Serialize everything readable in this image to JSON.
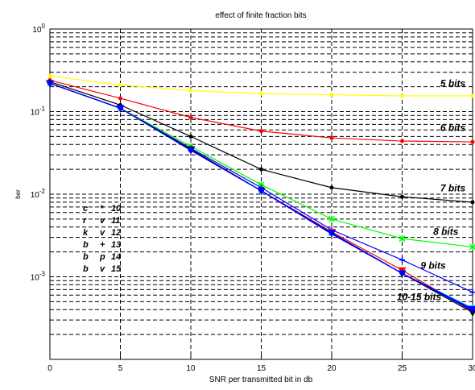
{
  "chart_data": {
    "type": "line",
    "title": "effect of finite fraction bits",
    "xlabel": "SNR per transmitted bit in db",
    "ylabel": "ber",
    "xlim": [
      0,
      30
    ],
    "ylim": [
      0.0001,
      1
    ],
    "yscale": "log",
    "grid": true,
    "x_ticks": [
      "0",
      "5",
      "10",
      "15",
      "20",
      "25",
      "30"
    ],
    "y_ticks": [
      {
        "base": "10",
        "exp": "0",
        "value": 1
      },
      {
        "base": "10",
        "exp": "-1",
        "value": 0.1
      },
      {
        "base": "10",
        "exp": "-2",
        "value": 0.01
      },
      {
        "base": "10",
        "exp": "-3",
        "value": 0.001
      }
    ],
    "x": [
      0,
      5,
      10,
      15,
      20,
      25,
      30
    ],
    "series": [
      {
        "name": "5 bits",
        "color": "#ffff00",
        "marker": "dot",
        "values": [
          0.27,
          0.21,
          0.18,
          0.165,
          0.16,
          0.155,
          0.155
        ]
      },
      {
        "name": "6 bits",
        "color": "#ff0000",
        "marker": "dot",
        "values": [
          0.24,
          0.145,
          0.085,
          0.058,
          0.048,
          0.044,
          0.043
        ]
      },
      {
        "name": "7 bits",
        "color": "#000000",
        "marker": "dot",
        "values": [
          0.23,
          0.12,
          0.05,
          0.02,
          0.012,
          0.0093,
          0.008
        ]
      },
      {
        "name": "8 bits",
        "color": "#00ff00",
        "marker": "star",
        "values": [
          0.22,
          0.11,
          0.038,
          0.013,
          0.005,
          0.0029,
          0.0023
        ]
      },
      {
        "name": "9 bits",
        "color": "#0000ff",
        "marker": "plus",
        "values": [
          0.22,
          0.11,
          0.036,
          0.012,
          0.0037,
          0.0016,
          0.00065
        ]
      },
      {
        "name": "10",
        "color": "#00ffff",
        "marker": "star",
        "values": [
          0.22,
          0.11,
          0.035,
          0.011,
          0.0034,
          0.0011,
          0.00042
        ]
      },
      {
        "name": "11",
        "color": "#ff0000",
        "marker": "tri",
        "values": [
          0.22,
          0.11,
          0.035,
          0.011,
          0.0035,
          0.0012,
          0.00038
        ]
      },
      {
        "name": "12",
        "color": "#000000",
        "marker": "tri",
        "values": [
          0.22,
          0.11,
          0.035,
          0.011,
          0.0034,
          0.0011,
          0.00037
        ]
      },
      {
        "name": "13",
        "color": "#0000ff",
        "marker": "plus",
        "values": [
          0.22,
          0.11,
          0.034,
          0.011,
          0.0033,
          0.0011,
          0.00039
        ]
      },
      {
        "name": "14",
        "color": "#0000ff",
        "marker": "dot",
        "values": [
          0.22,
          0.11,
          0.034,
          0.011,
          0.0033,
          0.0011,
          0.0004
        ]
      },
      {
        "name": "15",
        "color": "#0000ff",
        "marker": "tri",
        "values": [
          0.22,
          0.11,
          0.034,
          0.011,
          0.0034,
          0.0011,
          0.00041
        ]
      }
    ],
    "annotations": [
      {
        "text": "5 bits",
        "x": 28.6,
        "y": 0.2
      },
      {
        "text": "6 bits",
        "x": 28.6,
        "y": 0.058
      },
      {
        "text": "7 bits",
        "x": 28.6,
        "y": 0.0108
      },
      {
        "text": "8 bits",
        "x": 28.1,
        "y": 0.0032
      },
      {
        "text": "9 bits",
        "x": 27.2,
        "y": 0.00125
      },
      {
        "text": "10-15 bits",
        "x": 26.2,
        "y": 0.00052
      }
    ],
    "legend_placement": "center-left",
    "legend": [
      {
        "col1": "c",
        "col2": "*",
        "col3": "10"
      },
      {
        "col1": "r",
        "col2": "v",
        "col3": "11"
      },
      {
        "col1": "k",
        "col2": "v",
        "col3": "12"
      },
      {
        "col1": "b",
        "col2": "+",
        "col3": "13"
      },
      {
        "col1": "b",
        "col2": "p",
        "col3": "14"
      },
      {
        "col1": "b",
        "col2": "v",
        "col3": "15"
      }
    ]
  }
}
